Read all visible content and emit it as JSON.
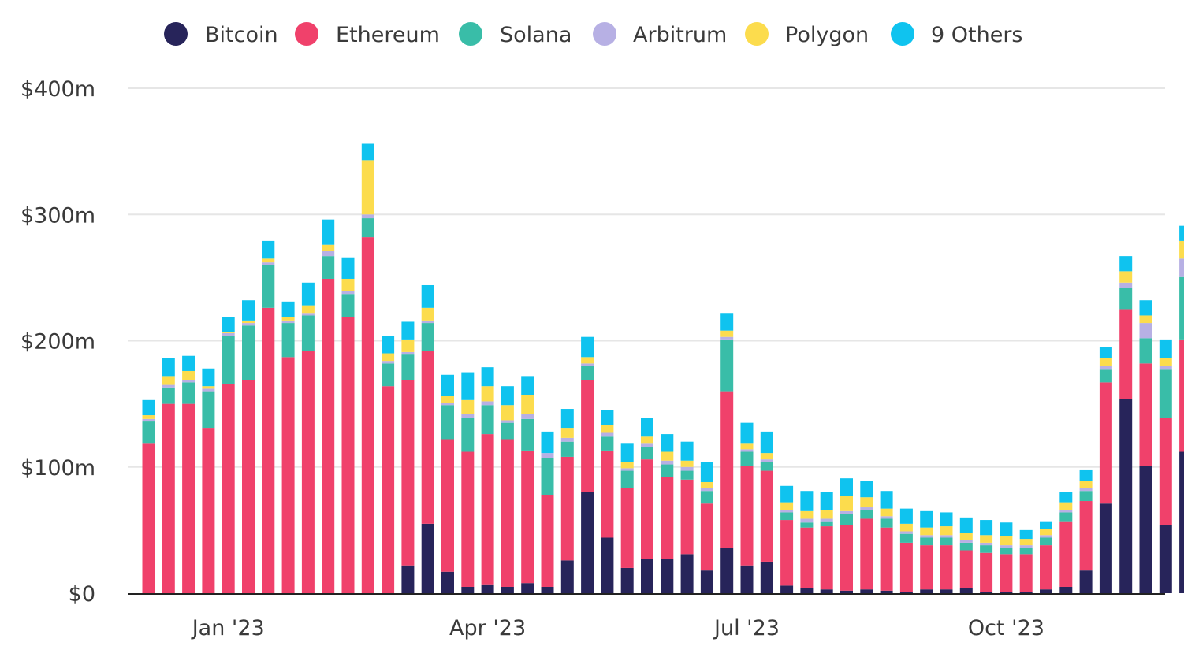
{
  "chart_data": {
    "type": "bar",
    "stacked": true,
    "title": "",
    "xlabel": "",
    "ylabel": "",
    "ylim": [
      0,
      400
    ],
    "y_unit": "millions USD",
    "grid": true,
    "legend_position": "top",
    "y_ticks": [
      {
        "value": 0,
        "label": "$0"
      },
      {
        "value": 100,
        "label": "$100m"
      },
      {
        "value": 200,
        "label": "$200m"
      },
      {
        "value": 300,
        "label": "$300m"
      },
      {
        "value": 400,
        "label": "$400m"
      }
    ],
    "x_ticks": [
      {
        "index": 4,
        "label": "Jan '23"
      },
      {
        "index": 17,
        "label": "Apr '23"
      },
      {
        "index": 30,
        "label": "Jul '23"
      },
      {
        "index": 43,
        "label": "Oct '23"
      }
    ],
    "bar_count": 53,
    "series": [
      {
        "name": "Bitcoin",
        "color": "#27245a",
        "values": [
          0,
          0,
          0,
          0,
          0,
          0,
          0,
          0,
          0,
          0,
          0,
          0,
          0,
          22,
          55,
          17,
          5,
          7,
          5,
          8,
          5,
          26,
          80,
          44,
          20,
          27,
          27,
          31,
          18,
          36,
          22,
          25,
          6,
          4,
          3,
          2,
          3,
          2,
          1,
          3,
          3,
          4,
          1,
          1,
          1,
          3,
          5,
          18,
          71,
          154,
          101,
          54,
          112
        ]
      },
      {
        "name": "Ethereum",
        "color": "#f0416b",
        "values": [
          119,
          150,
          150,
          131,
          166,
          169,
          226,
          187,
          192,
          249,
          219,
          282,
          164,
          147,
          137,
          105,
          107,
          119,
          117,
          105,
          73,
          82,
          89,
          69,
          63,
          79,
          65,
          59,
          53,
          124,
          79,
          72,
          52,
          48,
          50,
          52,
          56,
          50,
          39,
          35,
          35,
          30,
          31,
          30,
          30,
          35,
          52,
          55,
          96,
          71,
          81,
          85,
          89
        ]
      },
      {
        "name": "Solana",
        "color": "#39bda8",
        "values": [
          17,
          13,
          17,
          29,
          38,
          43,
          34,
          27,
          28,
          18,
          18,
          15,
          18,
          20,
          22,
          27,
          27,
          23,
          13,
          25,
          29,
          12,
          11,
          11,
          14,
          10,
          10,
          7,
          10,
          41,
          11,
          7,
          6,
          4,
          4,
          9,
          7,
          7,
          7,
          6,
          6,
          6,
          6,
          5,
          5,
          6,
          7,
          8,
          10,
          17,
          20,
          38,
          50
        ]
      },
      {
        "name": "Arbitrum",
        "color": "#b7b0e4",
        "values": [
          2,
          2,
          2,
          2,
          2,
          2,
          2,
          2,
          2,
          4,
          2,
          3,
          2,
          2,
          2,
          2,
          3,
          3,
          2,
          4,
          4,
          3,
          2,
          3,
          2,
          3,
          3,
          3,
          2,
          2,
          2,
          2,
          2,
          3,
          2,
          2,
          2,
          2,
          2,
          2,
          2,
          2,
          2,
          2,
          2,
          2,
          2,
          2,
          3,
          4,
          12,
          3,
          14
        ]
      },
      {
        "name": "Polygon",
        "color": "#fcdc4d",
        "values": [
          3,
          7,
          7,
          2,
          1,
          2,
          3,
          3,
          6,
          5,
          10,
          43,
          6,
          10,
          10,
          5,
          11,
          12,
          12,
          15,
          0,
          8,
          5,
          6,
          5,
          5,
          7,
          5,
          5,
          5,
          5,
          5,
          6,
          6,
          7,
          12,
          8,
          6,
          6,
          6,
          7,
          6,
          6,
          7,
          5,
          5,
          6,
          6,
          6,
          9,
          6,
          6,
          14
        ]
      },
      {
        "name": "9 Others",
        "color": "#0fc3ef",
        "values": [
          12,
          14,
          12,
          14,
          12,
          16,
          14,
          12,
          18,
          20,
          17,
          13,
          14,
          14,
          18,
          17,
          22,
          15,
          15,
          15,
          17,
          15,
          16,
          12,
          15,
          15,
          14,
          15,
          16,
          14,
          16,
          17,
          13,
          16,
          14,
          14,
          13,
          14,
          12,
          13,
          11,
          12,
          12,
          11,
          7,
          6,
          8,
          9,
          9,
          12,
          12,
          15,
          12
        ]
      }
    ]
  }
}
